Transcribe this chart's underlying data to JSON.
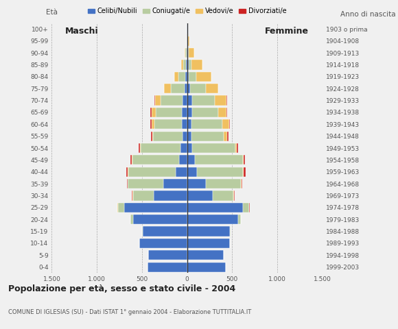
{
  "age_groups": [
    "0-4",
    "5-9",
    "10-14",
    "15-19",
    "20-24",
    "25-29",
    "30-34",
    "35-39",
    "40-44",
    "45-49",
    "50-54",
    "55-59",
    "60-64",
    "65-69",
    "70-74",
    "75-79",
    "80-84",
    "85-89",
    "90-94",
    "95-99",
    "100+"
  ],
  "birth_years": [
    "1999-2003",
    "1994-1998",
    "1989-1993",
    "1984-1988",
    "1979-1983",
    "1974-1978",
    "1969-1973",
    "1964-1968",
    "1959-1963",
    "1954-1958",
    "1949-1953",
    "1944-1948",
    "1939-1943",
    "1934-1938",
    "1929-1933",
    "1924-1928",
    "1919-1923",
    "1914-1918",
    "1909-1913",
    "1904-1908",
    "1903 o prima"
  ],
  "colors": {
    "celibi": "#4472c4",
    "coniugati": "#b8cca0",
    "vedovi": "#f0c060",
    "divorziati": "#cc2222"
  },
  "maschi_celibi": [
    440,
    430,
    530,
    495,
    600,
    700,
    370,
    265,
    130,
    90,
    70,
    50,
    55,
    60,
    50,
    28,
    18,
    15,
    8,
    4,
    2
  ],
  "maschi_coniugati": [
    0,
    0,
    0,
    5,
    25,
    65,
    230,
    390,
    520,
    515,
    445,
    325,
    310,
    285,
    245,
    155,
    75,
    28,
    8,
    2,
    0
  ],
  "maschi_vedovi": [
    0,
    0,
    0,
    0,
    5,
    5,
    5,
    5,
    5,
    5,
    10,
    12,
    30,
    50,
    60,
    75,
    48,
    22,
    8,
    2,
    0
  ],
  "maschi_divorziati": [
    0,
    0,
    0,
    0,
    0,
    5,
    5,
    10,
    20,
    18,
    15,
    10,
    10,
    10,
    8,
    0,
    0,
    0,
    0,
    0,
    0
  ],
  "femmine_celibi": [
    428,
    408,
    478,
    478,
    568,
    618,
    288,
    208,
    112,
    88,
    58,
    48,
    52,
    58,
    55,
    32,
    22,
    18,
    10,
    5,
    2
  ],
  "femmine_coniugati": [
    0,
    0,
    0,
    5,
    28,
    68,
    228,
    388,
    508,
    528,
    478,
    358,
    338,
    288,
    255,
    175,
    78,
    28,
    10,
    2,
    0
  ],
  "femmine_vedovi": [
    0,
    0,
    0,
    0,
    0,
    5,
    5,
    5,
    5,
    8,
    18,
    38,
    78,
    88,
    128,
    138,
    172,
    128,
    58,
    18,
    5
  ],
  "femmine_divorziati": [
    0,
    0,
    0,
    0,
    0,
    5,
    5,
    10,
    28,
    18,
    15,
    15,
    10,
    8,
    5,
    0,
    0,
    0,
    0,
    0,
    0
  ],
  "title": "Popolazione per età, sesso e stato civile - 2004",
  "subtitle": "COMUNE DI IGLESIAS (SU) - Dati ISTAT 1° gennaio 2004 - Elaborazione TUTTITALIA.IT",
  "xlim": 1500,
  "xticks": [
    -1500,
    -1000,
    -500,
    0,
    500,
    1000,
    1500
  ],
  "xticklabels": [
    "1.500",
    "1.000",
    "500",
    "0",
    "500",
    "1.000",
    "1.500"
  ],
  "legend_labels": [
    "Celibi/Nubili",
    "Coniugati/e",
    "Vedovi/e",
    "Divorziati/e"
  ],
  "ylabel_left": "Età",
  "ylabel_right": "Anno di nascita",
  "label_maschi": "Maschi",
  "label_femmine": "Femmine",
  "bg_color": "#f0f0f0"
}
